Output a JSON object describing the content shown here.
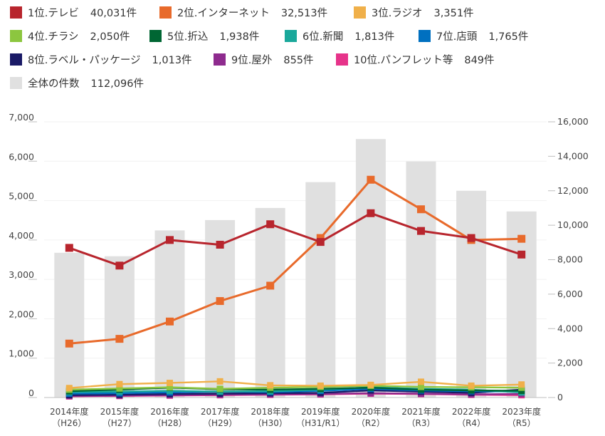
{
  "chart_data": {
    "type": "bar+line",
    "categories": [
      [
        "2014年度",
        "（H26）"
      ],
      [
        "2015年度",
        "（H27）"
      ],
      [
        "2016年度",
        "（H28）"
      ],
      [
        "2017年度",
        "（H29）"
      ],
      [
        "2018年度",
        "（H30）"
      ],
      [
        "2019年度",
        "（H31/R1）"
      ],
      [
        "2020年度",
        "（R2）"
      ],
      [
        "2021年度",
        "（R3）"
      ],
      [
        "2022年度",
        "（R4）"
      ],
      [
        "2023年度",
        "（R5）"
      ]
    ],
    "left_axis": {
      "ylim": [
        0,
        7000
      ],
      "ticks": [
        0,
        1000,
        2000,
        3000,
        4000,
        5000,
        6000,
        7000
      ],
      "tick_labels": [
        "0",
        "1,000",
        "2,000",
        "3,000",
        "4,000",
        "5,000",
        "6,000",
        "7,000"
      ]
    },
    "right_axis": {
      "ylim": [
        0,
        16000
      ],
      "ticks": [
        0,
        2000,
        4000,
        6000,
        8000,
        10000,
        12000,
        14000,
        16000
      ],
      "tick_labels": [
        "0",
        "2,000",
        "4,000",
        "6,000",
        "8,000",
        "10,000",
        "12,000",
        "14,000",
        "16,000"
      ]
    },
    "bars": {
      "name": "全体の件数",
      "total_label": "112,096件",
      "color": "#e0e0e0",
      "axis": "right",
      "values": [
        8400,
        8200,
        9700,
        10300,
        11000,
        12500,
        15000,
        13700,
        12000,
        10800
      ]
    },
    "series": [
      {
        "name": "1位.テレビ",
        "total_label": "40,031件",
        "color": "#b8252d",
        "axis": "left",
        "values": [
          3800,
          3350,
          4000,
          3880,
          4400,
          3950,
          4680,
          4230,
          4050,
          3630
        ]
      },
      {
        "name": "2位.インターネット",
        "total_label": "32,513件",
        "color": "#e86a2b",
        "axis": "left",
        "values": [
          1370,
          1490,
          1930,
          2450,
          2840,
          4050,
          5530,
          4780,
          4000,
          4030
        ]
      },
      {
        "name": "3位.ラジオ",
        "total_label": "3,351件",
        "color": "#f0b04a",
        "axis": "left",
        "values": [
          240,
          340,
          370,
          410,
          310,
          300,
          320,
          400,
          300,
          330
        ]
      },
      {
        "name": "4位.チラシ",
        "total_label": "2,050件",
        "color": "#8cc63f",
        "axis": "left",
        "values": [
          200,
          230,
          260,
          220,
          250,
          270,
          300,
          270,
          260,
          250
        ]
      },
      {
        "name": "5位.折込",
        "total_label": "1,938件",
        "color": "#006633",
        "axis": "left",
        "values": [
          160,
          200,
          250,
          210,
          200,
          220,
          250,
          200,
          180,
          170
        ]
      },
      {
        "name": "6位.新聞",
        "total_label": "1,813件",
        "color": "#1aa89b",
        "axis": "left",
        "values": [
          140,
          150,
          170,
          150,
          160,
          200,
          260,
          220,
          200,
          130
        ]
      },
      {
        "name": "7位.店頭",
        "total_label": "1,765件",
        "color": "#0070c0",
        "axis": "left",
        "values": [
          100,
          110,
          130,
          150,
          140,
          170,
          220,
          180,
          160,
          150
        ]
      },
      {
        "name": "8位.ラベル・パッケージ",
        "total_label": "1,013件",
        "color": "#1a1a66",
        "axis": "left",
        "values": [
          60,
          70,
          90,
          100,
          110,
          120,
          180,
          150,
          120,
          200
        ]
      },
      {
        "name": "9位.屋外",
        "total_label": "855件",
        "color": "#8e2b8e",
        "axis": "left",
        "values": [
          40,
          50,
          60,
          70,
          80,
          90,
          110,
          100,
          80,
          90
        ]
      },
      {
        "name": "10位.パンフレット等",
        "total_label": "849件",
        "color": "#e6338a",
        "axis": "left",
        "values": [
          30,
          40,
          50,
          60,
          70,
          80,
          100,
          90,
          70,
          60
        ]
      }
    ]
  }
}
